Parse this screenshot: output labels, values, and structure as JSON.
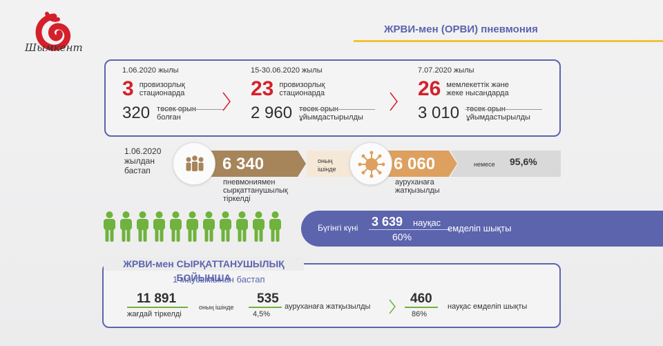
{
  "header": {
    "logo_text": "Шымкент",
    "title": "ЖРВИ-мен (ОРВИ) пневмония"
  },
  "top_box": {
    "col1": {
      "date": "1.06.2020 жылы",
      "big_num": "3",
      "big_desc": [
        "провизорлық",
        "стационарда"
      ],
      "sub_num": "320",
      "sub_desc": [
        "төсек орын",
        "болған"
      ]
    },
    "col2": {
      "date": "15-30.06.2020 жылы",
      "big_num": "23",
      "big_desc": [
        "провизорлық",
        "стационарда"
      ],
      "sub_num": "2 960",
      "sub_desc": [
        "төсек орын",
        "ұйымдастырылды"
      ]
    },
    "col3": {
      "date": "7.07.2020 жылы",
      "big_num": "26",
      "big_desc": [
        "мемлекеттік және",
        "жеке нысандарда"
      ],
      "sub_num": "3 010",
      "sub_desc": [
        "төсек орын",
        "ұйымдастырылды"
      ]
    }
  },
  "middle": {
    "since": [
      "1.06.2020",
      "жылдан",
      "бастап"
    ],
    "pneumonia_num": "6 340",
    "pneumonia_desc": [
      "пневмониямен",
      "сырқаттанушылық",
      "тіркелді"
    ],
    "of_which": [
      "оның",
      "ішінде"
    ],
    "hospitalized_num": "6 060",
    "hospitalized_desc": [
      "ауруханаға",
      "жатқызылды"
    ],
    "or_label": "немесе",
    "percent": "95,6%"
  },
  "people": {
    "count": 11,
    "color": "#6fb23d"
  },
  "discharged": {
    "today_label": "Бүгінгі күні",
    "num": "3 639",
    "unit": "науқас",
    "percent": "60%",
    "action": "емделіп шықты"
  },
  "bottom": {
    "title": "ЖРВИ-мен СЫРҚАТТАНУШЫЛЫҚ БОЙЫНША",
    "subtitle": "1 маусымынан бастап",
    "cases_num": "11 891",
    "cases_label": "жағдай тіркелді",
    "of_which": [
      "оның ішінде"
    ],
    "hosp_num": "535",
    "hosp_pct": "4,5%",
    "hosp_label": "ауруханаға жатқызылды",
    "recovered_num": "460",
    "recovered_pct": "86%",
    "recovered_label": "науқас емделіп шықты"
  },
  "colors": {
    "accent": "#5b64ad",
    "red": "#d4202a",
    "brown": "#a6855a",
    "orange": "#dda05e",
    "yellow": "#f1c232",
    "green": "#6fb23d"
  }
}
